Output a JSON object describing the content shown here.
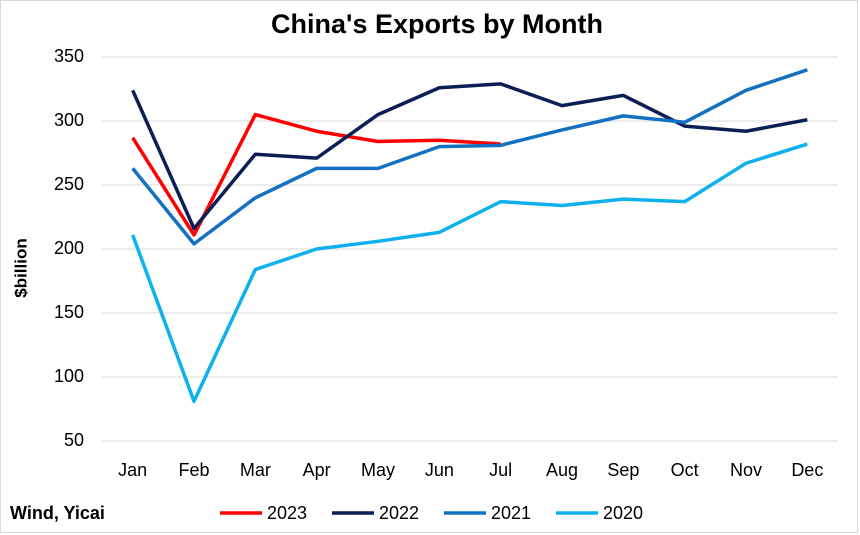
{
  "chart_data": {
    "type": "line",
    "title": "China's Exports by Month",
    "y_label": "$billion",
    "source": "Wind, Yicai",
    "categories": [
      "Jan",
      "Feb",
      "Mar",
      "Apr",
      "May",
      "Jun",
      "Jul",
      "Aug",
      "Sep",
      "Oct",
      "Nov",
      "Dec"
    ],
    "series": [
      {
        "name": "2023",
        "color": "#ff0000",
        "values": [
          287,
          211,
          305,
          292,
          284,
          285,
          282,
          null,
          null,
          null,
          null,
          null
        ]
      },
      {
        "name": "2022",
        "color": "#0b1f55",
        "values": [
          324,
          216,
          274,
          271,
          305,
          326,
          329,
          312,
          320,
          296,
          292,
          301
        ]
      },
      {
        "name": "2021",
        "color": "#1470c0",
        "values": [
          263,
          204,
          240,
          263,
          263,
          280,
          281,
          293,
          304,
          299,
          324,
          340
        ]
      },
      {
        "name": "2020",
        "color": "#0fb0ee",
        "values": [
          211,
          81,
          184,
          200,
          206,
          213,
          237,
          234,
          239,
          237,
          267,
          282
        ]
      }
    ],
    "ylim": [
      50,
      350
    ],
    "yticks": [
      50,
      100,
      150,
      200,
      250,
      300,
      350
    ],
    "grid": true,
    "legend": "bottom"
  }
}
